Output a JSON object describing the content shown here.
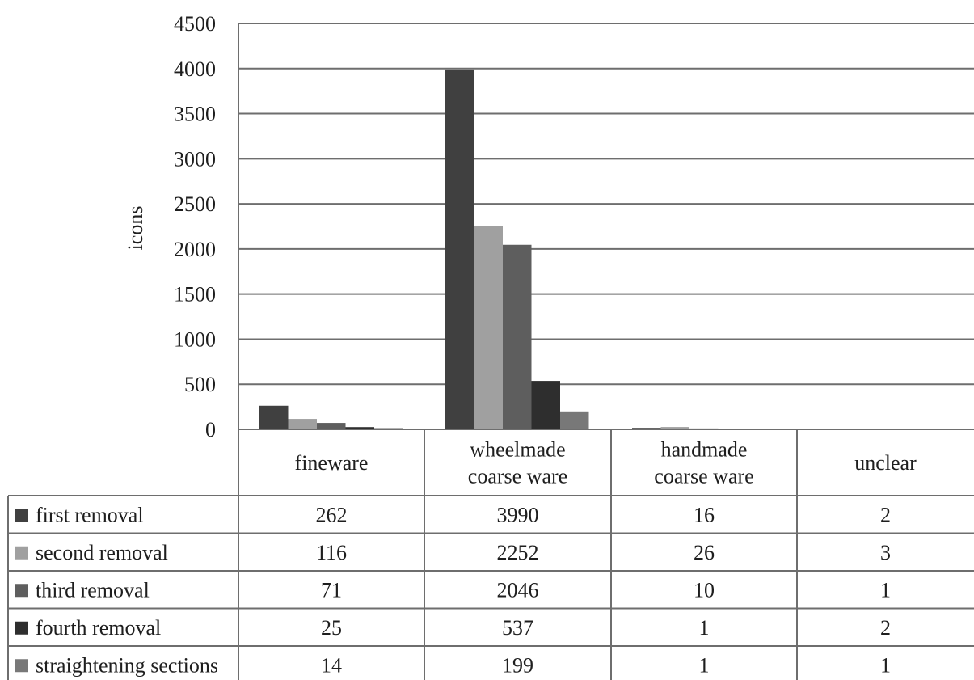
{
  "chart_data": {
    "type": "bar",
    "title": "",
    "xlabel": "",
    "ylabel": "icons",
    "ylim": [
      0,
      4500
    ],
    "yticks": [
      "0",
      "500",
      "1000",
      "1500",
      "2000",
      "2500",
      "3000",
      "3500",
      "4000",
      "4500"
    ],
    "grid": true,
    "legend": "data table below the chart",
    "categories": [
      [
        "fineware"
      ],
      [
        "wheelmade",
        "coarse ware"
      ],
      [
        "handmade",
        "coarse ware"
      ],
      [
        "unclear"
      ]
    ],
    "series": [
      {
        "name": "first removal",
        "color": "#404040",
        "values": [
          262,
          3990,
          16,
          2
        ]
      },
      {
        "name": "second removal",
        "color": "#a0a0a0",
        "values": [
          116,
          2252,
          26,
          3
        ]
      },
      {
        "name": "third removal",
        "color": "#5e5e5e",
        "values": [
          71,
          2046,
          10,
          1
        ]
      },
      {
        "name": "fourth removal",
        "color": "#2e2e2e",
        "values": [
          25,
          537,
          1,
          2
        ]
      },
      {
        "name": "straightening sections",
        "color": "#787878",
        "values": [
          14,
          199,
          1,
          1
        ]
      }
    ]
  }
}
